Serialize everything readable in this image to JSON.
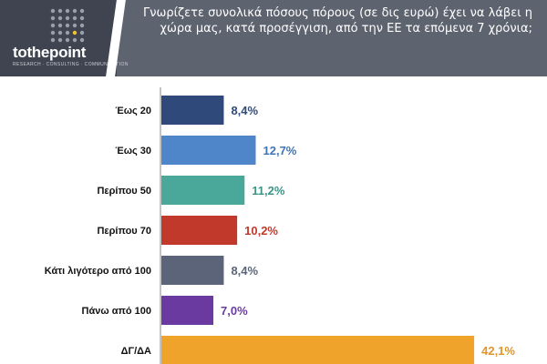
{
  "header": {
    "logo_text": "tothepoint",
    "logo_tagline": "RESEARCH · CONSULTING · COMMUNICATION",
    "question": "Γνωρίζετε συνολικά πόσους πόρους (σε δις ευρώ) έχει να λάβει η χώρα μας, κατά προσέγγιση, από την ΕΕ τα επόμενα 7 χρόνια;"
  },
  "colors": {
    "header_bg": "#5e6370",
    "logo_bg": "#3f4450"
  },
  "chart_data": {
    "type": "bar",
    "orientation": "horizontal",
    "title": "Γνωρίζετε συνολικά πόσους πόρους (σε δις ευρώ) έχει να λάβει η χώρα μας, κατά προσέγγιση, από την ΕΕ τα επόμενα 7 χρόνια;",
    "categories": [
      "Έως 20",
      "Έως 30",
      "Περίπου 50",
      "Περίπου 70",
      "Κάτι λιγότερο από 100",
      "Πάνω από 100",
      "ΔΓ/ΔΑ"
    ],
    "values": [
      8.4,
      12.7,
      11.2,
      10.2,
      8.4,
      7.0,
      42.1
    ],
    "value_labels": [
      "8,4%",
      "12,7%",
      "11,2%",
      "10,2%",
      "8,4%",
      "7,0%",
      "42,1%"
    ],
    "bar_colors": [
      "#2f4a7a",
      "#4f86c9",
      "#4aa89a",
      "#c0392b",
      "#5b6478",
      "#6b3aa0",
      "#f0a32a"
    ],
    "label_colors": [
      "#2f4a7a",
      "#3f74b5",
      "#3c9486",
      "#c0392b",
      "#5b6478",
      "#6b3aa0",
      "#e0962a"
    ],
    "xlabel": "",
    "ylabel": "",
    "xlim": [
      0,
      45
    ],
    "grid": false,
    "legend": "none"
  }
}
